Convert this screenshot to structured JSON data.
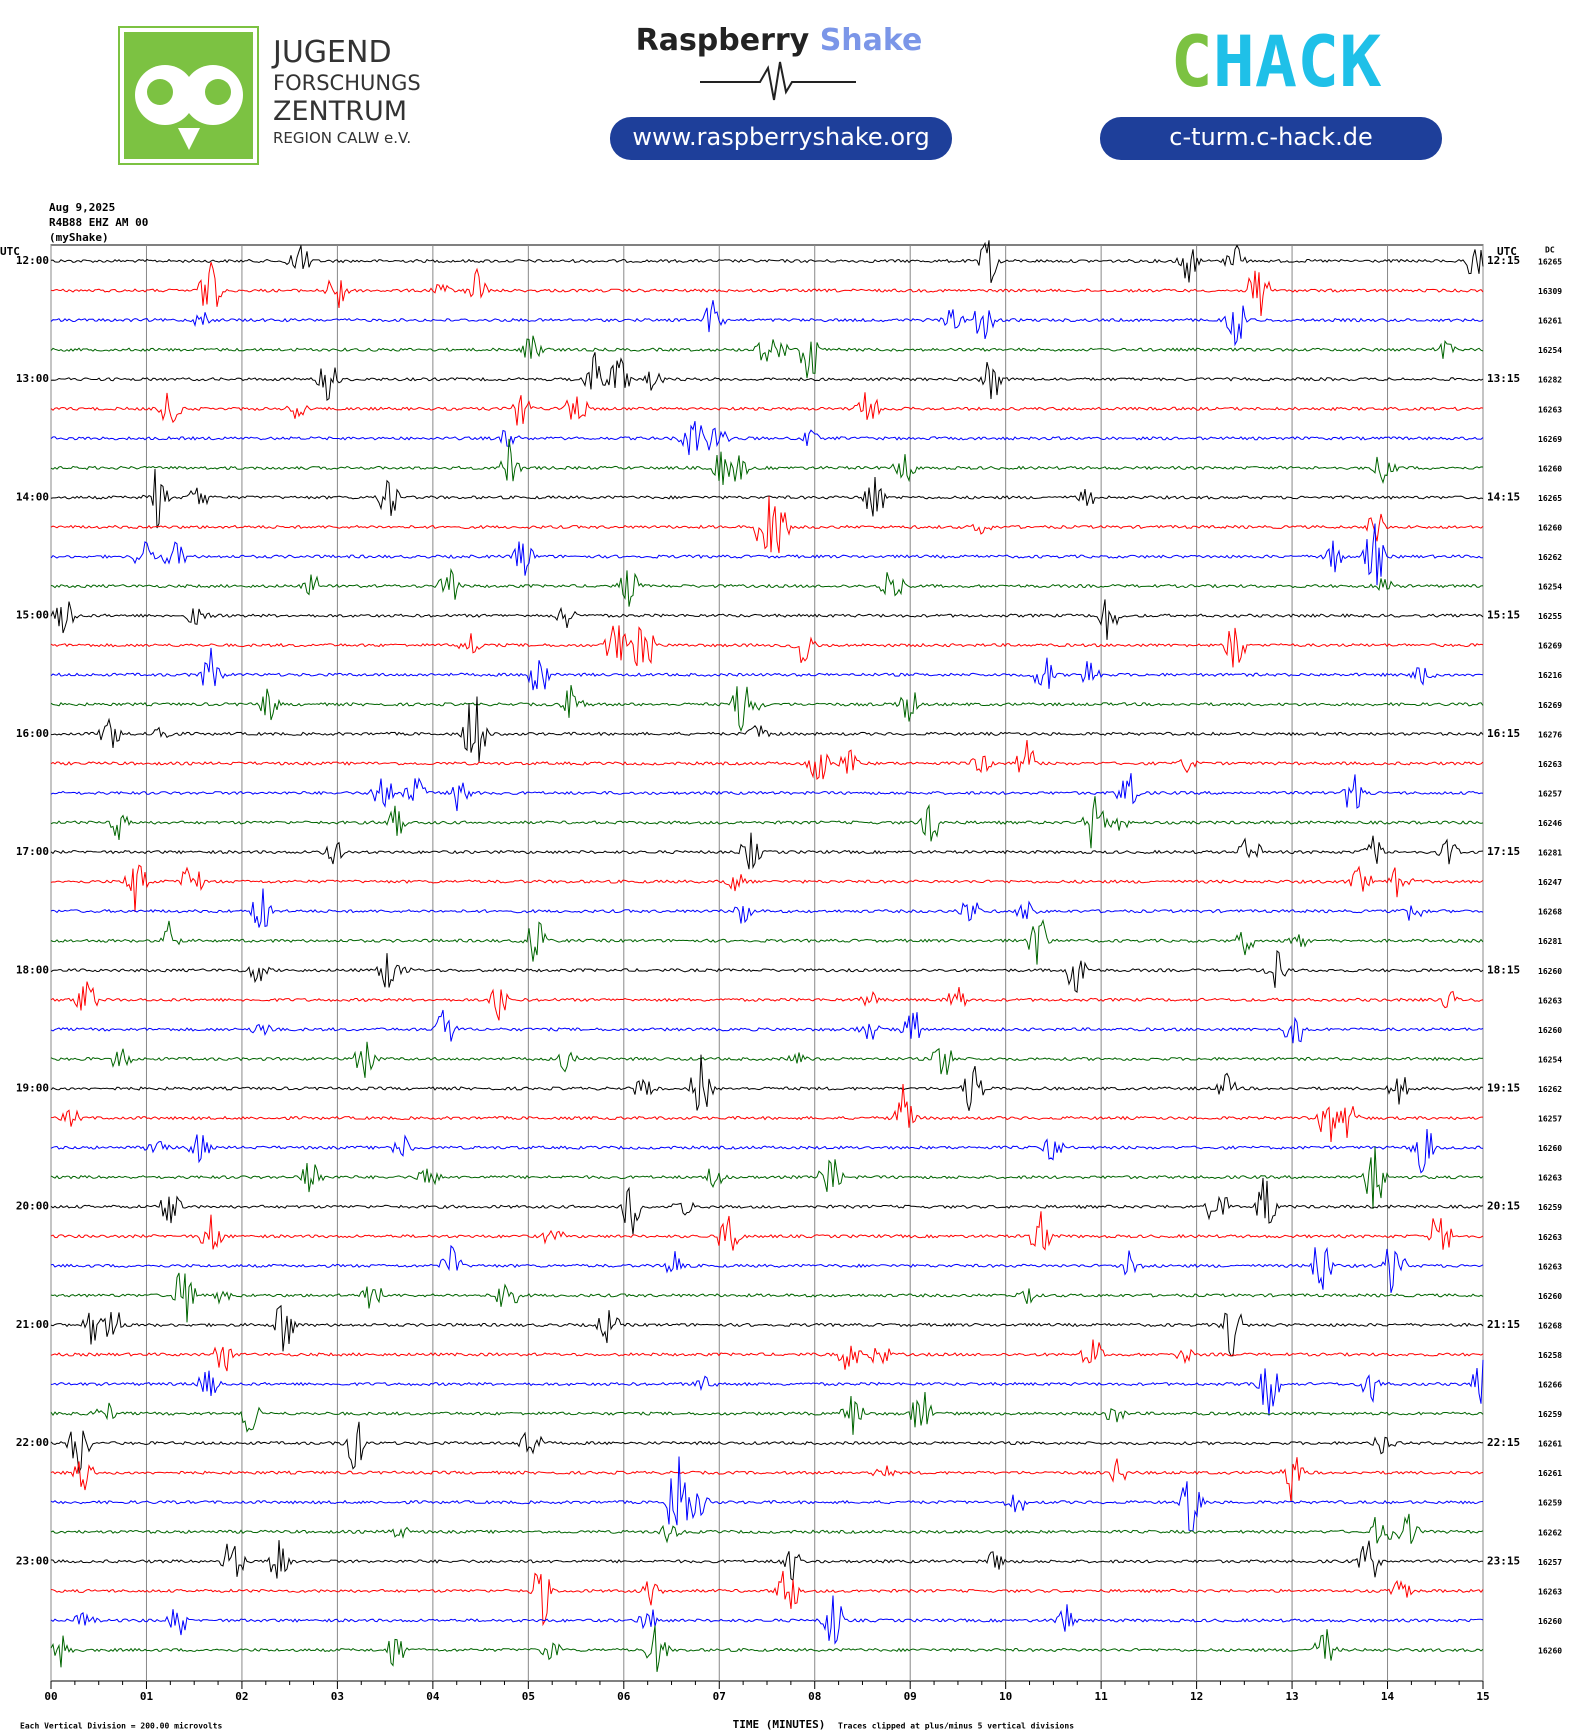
{
  "header": {
    "org_lines": [
      "JUGEND",
      "FORSCHUNGS",
      "ZENTRUM",
      "REGION CALW e.V."
    ],
    "brand_a": "Raspberry",
    "brand_b": "Shake",
    "url_a": "www.raspberryshake.org",
    "chack_a": "C",
    "chack_b": "HACK",
    "url_b": "c-turm.c-hack.de"
  },
  "chart_data": {
    "type": "helicorder",
    "info": [
      "Aug 9,2025",
      "R4B88 EHZ AM 00",
      "(myShake)"
    ],
    "utc_left": "UTC",
    "utc_right": "UTC",
    "dc_label": "DC",
    "colors": [
      "#000000",
      "#ff0000",
      "#0000ff",
      "#006400"
    ],
    "rows_left": [
      "12:00",
      "13:00",
      "14:00",
      "15:00",
      "16:00",
      "17:00",
      "18:00",
      "19:00",
      "20:00",
      "21:00",
      "22:00",
      "23:00"
    ],
    "rows_right": [
      "12:15",
      "13:15",
      "14:15",
      "15:15",
      "16:15",
      "17:15",
      "18:15",
      "19:15",
      "20:15",
      "21:15",
      "22:15",
      "23:15"
    ],
    "dc": [
      16265,
      16309,
      16261,
      16254,
      16282,
      16263,
      16269,
      16260,
      16265,
      16260,
      16262,
      16254,
      16255,
      16269,
      16216,
      16269,
      16276,
      16263,
      16257,
      16246,
      16281,
      16247,
      16268,
      16281,
      16260,
      16263,
      16260,
      16254,
      16262,
      16257,
      16260,
      16263,
      16259,
      16263,
      16263,
      16260,
      16268,
      16258,
      16266,
      16259,
      16261,
      16261,
      16259,
      16262,
      16257,
      16263,
      16260,
      16260
    ],
    "xlim": [
      0,
      15
    ],
    "xticks": [
      {
        "value": 0,
        "label": "00"
      },
      {
        "value": 1,
        "label": "01"
      },
      {
        "value": 2,
        "label": "02"
      },
      {
        "value": 3,
        "label": "03"
      },
      {
        "value": 4,
        "label": "04"
      },
      {
        "value": 5,
        "label": "05"
      },
      {
        "value": 6,
        "label": "06"
      },
      {
        "value": 7,
        "label": "07"
      },
      {
        "value": 8,
        "label": "08"
      },
      {
        "value": 9,
        "label": "09"
      },
      {
        "value": 10,
        "label": "10"
      },
      {
        "value": 11,
        "label": "11"
      },
      {
        "value": 12,
        "label": "12"
      },
      {
        "value": 13,
        "label": "13"
      },
      {
        "value": 14,
        "label": "14"
      },
      {
        "value": 15,
        "label": "15"
      }
    ],
    "x_label": "TIME (MINUTES)",
    "footer_left": "Each Vertical Division =  200.00 microvolts",
    "footer_right": "Traces clipped at plus/minus 5 vertical divisions"
  }
}
